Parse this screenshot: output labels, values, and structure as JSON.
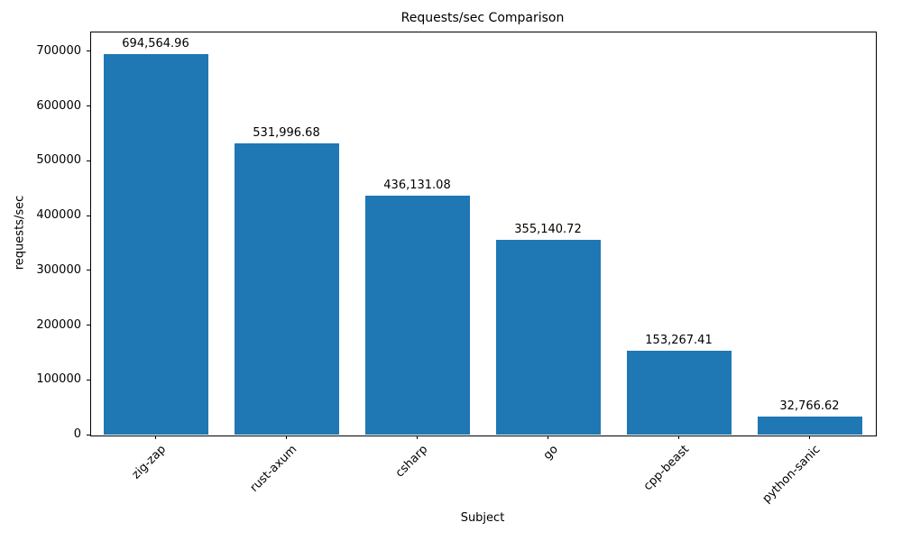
{
  "chart_data": {
    "type": "bar",
    "title": "Requests/sec Comparison",
    "xlabel": "Subject",
    "ylabel": "requests/sec",
    "categories": [
      "zig-zap",
      "rust-axum",
      "csharp",
      "go",
      "cpp-beast",
      "python-sanic"
    ],
    "values": [
      694564.96,
      531996.68,
      436131.08,
      355140.72,
      153267.41,
      32766.62
    ],
    "value_labels": [
      "694,564.96",
      "531,996.68",
      "436,131.08",
      "355,140.72",
      "153,267.41",
      "32,766.62"
    ],
    "yticks": [
      0,
      100000,
      200000,
      300000,
      400000,
      500000,
      600000,
      700000
    ],
    "ytick_labels": [
      "0",
      "100000",
      "200000",
      "300000",
      "400000",
      "500000",
      "600000",
      "700000"
    ],
    "ylim": [
      0,
      736000
    ],
    "bar_color": "#1f77b4",
    "grid": false,
    "legend": null
  }
}
